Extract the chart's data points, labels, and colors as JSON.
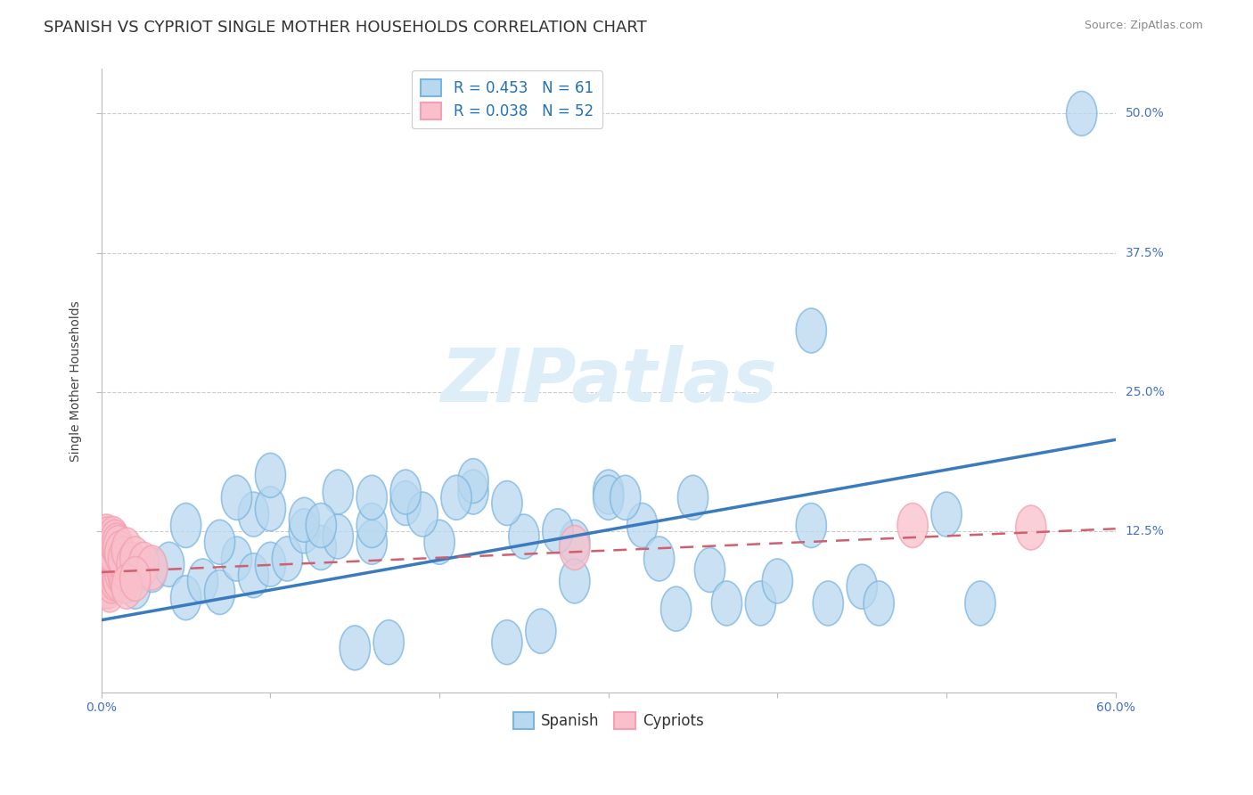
{
  "title": "SPANISH VS CYPRIOT SINGLE MOTHER HOUSEHOLDS CORRELATION CHART",
  "source": "Source: ZipAtlas.com",
  "ylabel": "Single Mother Households",
  "xlim": [
    0.0,
    0.6
  ],
  "ylim": [
    -0.02,
    0.54
  ],
  "xticks": [
    0.0,
    0.1,
    0.2,
    0.3,
    0.4,
    0.5,
    0.6
  ],
  "xticklabels": [
    "0.0%",
    "",
    "",
    "",
    "",
    "",
    "60.0%"
  ],
  "yticks": [
    0.125,
    0.25,
    0.375,
    0.5
  ],
  "yticklabels": [
    "12.5%",
    "25.0%",
    "37.5%",
    "50.0%"
  ],
  "spanish_R": 0.453,
  "spanish_N": 61,
  "cypriot_R": 0.038,
  "cypriot_N": 52,
  "spanish_color": "#7ab5e0",
  "cypriot_color": "#f4a0b0",
  "trend_spanish_color": "#3a7abf",
  "trend_cypriot_color": "#d06070",
  "background_color": "#ffffff",
  "watermark_color": "#ddeef8",
  "grid_color": "#cccccc",
  "title_fontsize": 13,
  "axis_label_fontsize": 10,
  "tick_fontsize": 10,
  "legend_fontsize": 12,
  "ytick_color": "#4472c4",
  "xtick_color": "#4472c4"
}
